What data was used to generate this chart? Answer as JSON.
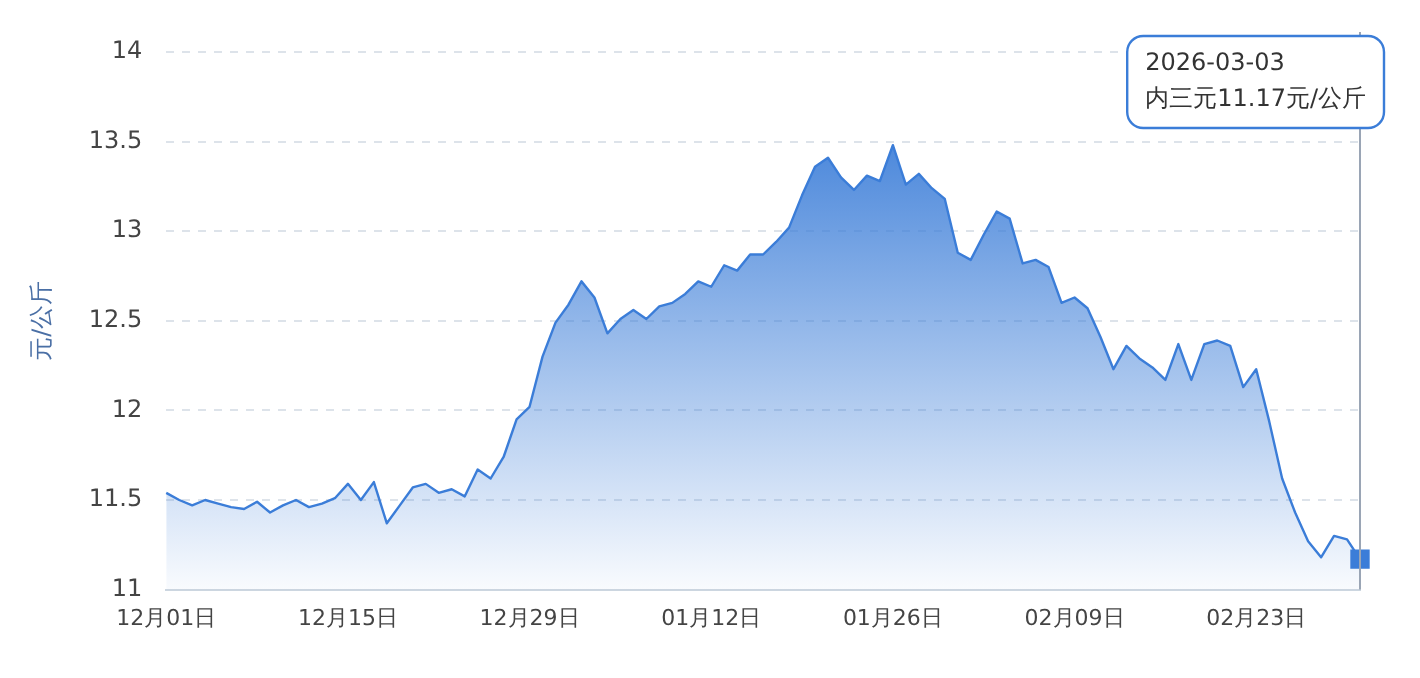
{
  "chart_data": {
    "type": "area",
    "ylabel": "元/公斤",
    "categories": [
      "12月01日",
      null,
      null,
      null,
      null,
      null,
      null,
      null,
      null,
      null,
      null,
      null,
      null,
      null,
      "12月15日",
      null,
      null,
      null,
      null,
      null,
      null,
      null,
      null,
      null,
      null,
      null,
      null,
      null,
      "12月29日",
      null,
      null,
      null,
      null,
      null,
      null,
      null,
      null,
      null,
      null,
      null,
      null,
      null,
      "01月12日",
      null,
      null,
      null,
      null,
      null,
      null,
      null,
      null,
      null,
      null,
      null,
      null,
      null,
      "01月26日",
      null,
      null,
      null,
      null,
      null,
      null,
      null,
      null,
      null,
      null,
      null,
      null,
      null,
      "02月09日",
      null,
      null,
      null,
      null,
      null,
      null,
      null,
      null,
      null,
      null,
      null,
      null,
      null,
      "02月23日",
      null,
      null,
      null,
      null,
      null,
      null,
      null,
      null
    ],
    "series": [
      {
        "color": "#3b7dd8",
        "values": [
          11.54,
          11.5,
          11.47,
          11.5,
          11.48,
          11.46,
          11.45,
          11.49,
          11.43,
          11.47,
          11.5,
          11.46,
          11.48,
          11.51,
          11.59,
          11.5,
          11.6,
          11.37,
          11.47,
          11.57,
          11.59,
          11.54,
          11.56,
          11.52,
          11.67,
          11.62,
          11.74,
          11.95,
          12.02,
          12.3,
          12.49,
          12.59,
          12.72,
          12.63,
          12.43,
          12.51,
          12.56,
          12.51,
          12.58,
          12.6,
          12.65,
          12.72,
          12.69,
          12.81,
          12.78,
          12.87,
          12.87,
          12.94,
          13.02,
          13.2,
          13.36,
          13.41,
          13.3,
          13.23,
          13.31,
          13.28,
          13.48,
          13.26,
          13.32,
          13.24,
          13.18,
          12.88,
          12.84,
          12.98,
          13.11,
          13.07,
          12.82,
          12.84,
          12.8,
          12.6,
          12.63,
          12.57,
          12.41,
          12.23,
          12.36,
          12.29,
          12.24,
          12.17,
          12.37,
          12.17,
          12.37,
          12.39,
          12.36,
          12.13,
          12.23,
          11.94,
          11.62,
          11.43,
          11.27,
          11.18,
          11.3,
          11.28,
          11.17
        ]
      }
    ],
    "ylim": [
      11,
      14
    ],
    "yticks": [
      11,
      11.5,
      12,
      12.5,
      13,
      13.5,
      14
    ],
    "grid": "y",
    "legend": false,
    "annotations": [
      "2026-03-03",
      "内三元11.17元/公斤"
    ]
  }
}
